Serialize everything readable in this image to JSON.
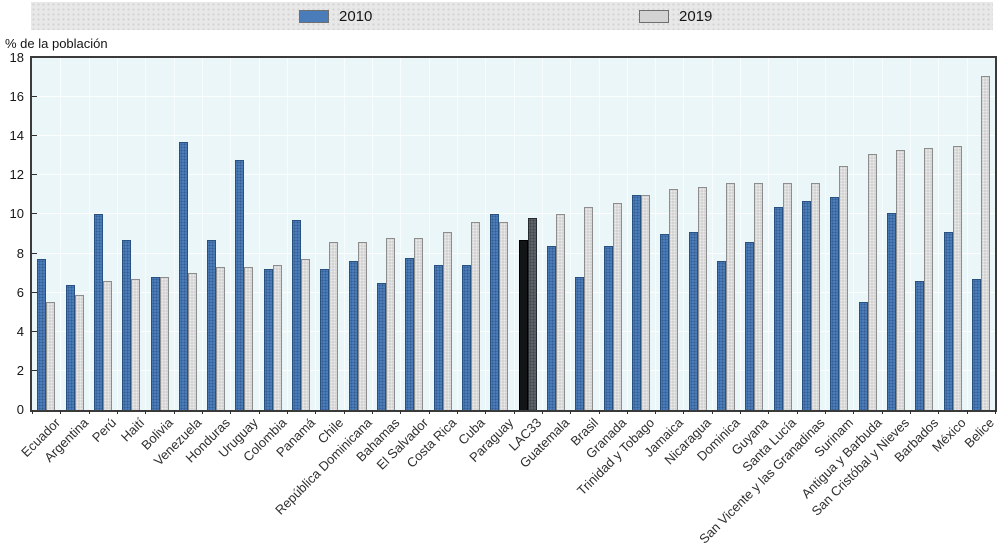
{
  "colors": {
    "series_2010": "#4b7cba",
    "series_2019": "#d3d3d3",
    "lac33_2010": "#121416",
    "lac33_2019": "#5a6169",
    "plot_bg": "#eaf6f8",
    "legend_bg": "#e8e8e8"
  },
  "legend": {
    "items": [
      {
        "label": "2010",
        "color": "#4b7cba"
      },
      {
        "label": "2019",
        "color": "#d3d3d3"
      }
    ]
  },
  "chart_data": {
    "type": "bar",
    "title": "",
    "ylabel": "% de la población",
    "xlabel": "",
    "ylim": [
      0,
      18
    ],
    "yticks": [
      0,
      2,
      4,
      6,
      8,
      10,
      12,
      14,
      16,
      18
    ],
    "grid": true,
    "legend_position": "top",
    "highlight_category": "LAC33",
    "categories": [
      "Ecuador",
      "Argentina",
      "Perú",
      "Haití",
      "Bolivia",
      "Venezuela",
      "Honduras",
      "Uruguay",
      "Colombia",
      "Panamá",
      "Chile",
      "República Dominicana",
      "Bahamas",
      "El Salvador",
      "Costa Rica",
      "Cuba",
      "Paraguay",
      "LAC33",
      "Guatemala",
      "Brasil",
      "Granada",
      "Trinidad y Tobago",
      "Jamaica",
      "Nicaragua",
      "Dominica",
      "Guyana",
      "Santa Lucía",
      "San Vicente y las Granadinas",
      "Surinam",
      "Antigua y Barbuda",
      "San Cristóbal y Nieves",
      "Barbados",
      "México",
      "Belice"
    ],
    "series": [
      {
        "name": "2010",
        "values": [
          7.7,
          6.4,
          10.0,
          8.7,
          6.8,
          13.7,
          8.7,
          12.8,
          7.2,
          9.7,
          7.2,
          7.6,
          6.5,
          7.8,
          7.4,
          7.4,
          10.0,
          8.7,
          8.4,
          6.8,
          8.4,
          11.0,
          9.0,
          9.1,
          7.6,
          8.6,
          10.4,
          10.7,
          10.9,
          5.5,
          10.1,
          6.6,
          9.1,
          6.7
        ]
      },
      {
        "name": "2019",
        "values": [
          5.5,
          5.9,
          6.6,
          6.7,
          6.8,
          7.0,
          7.3,
          7.3,
          7.4,
          7.7,
          8.6,
          8.6,
          8.8,
          8.8,
          9.1,
          9.6,
          9.6,
          9.8,
          10.0,
          10.4,
          10.6,
          11.0,
          11.3,
          11.4,
          11.6,
          11.6,
          11.6,
          11.6,
          12.5,
          13.1,
          13.3,
          13.4,
          13.5,
          17.1
        ]
      }
    ]
  }
}
